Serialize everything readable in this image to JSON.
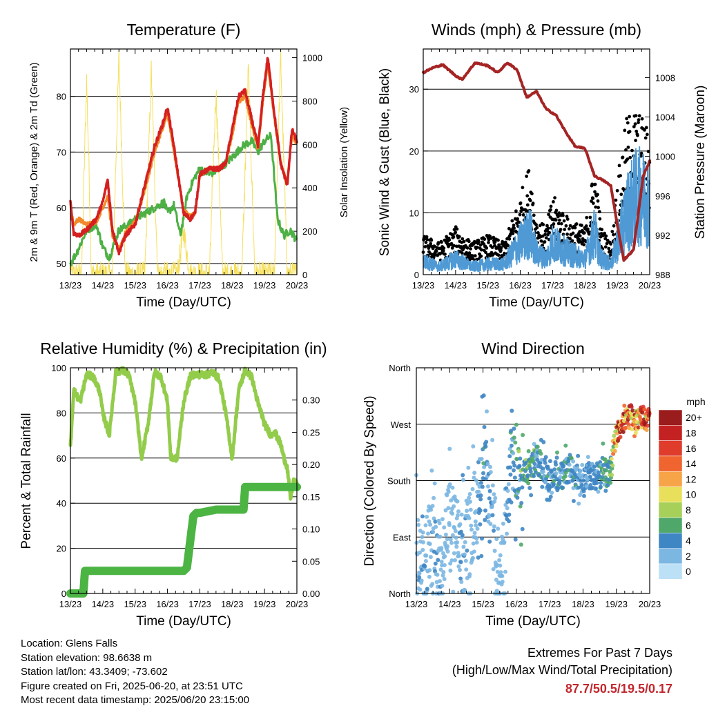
{
  "chart_data": [
    {
      "type": "line",
      "title": "Temperature (F)",
      "xlabel": "Time (Day/UTC)",
      "ylabel": "2m & 9m T (Red, Orange) & 2m Td (Green)",
      "ylabel_right": "Solar Insolation (Yellow)",
      "x_ticks": [
        "13/23",
        "14/23",
        "15/23",
        "16/23",
        "17/23",
        "18/23",
        "19/23",
        "20/23"
      ],
      "ylim": [
        48,
        88.5
      ],
      "y_ticks": [
        50,
        60,
        70,
        80
      ],
      "ylim_right": [
        0,
        1040
      ],
      "y_ticks_right": [
        0,
        200,
        400,
        600,
        800,
        1000
      ],
      "grid_y": true,
      "series": [
        {
          "color": "#d42020",
          "x": [
            0,
            0.1,
            0.25,
            0.5,
            0.8,
            1.0,
            1.15,
            1.3,
            1.5,
            1.7,
            2.0,
            2.3,
            2.6,
            2.85,
            3.0,
            3.2,
            3.5,
            3.7,
            3.85,
            4.0,
            4.3,
            4.6,
            4.8,
            5.0,
            5.2,
            5.4,
            5.6,
            5.8,
            5.95,
            6.1,
            6.3,
            6.5,
            6.7,
            6.85,
            7.0
          ],
          "values": [
            61,
            55.5,
            55,
            56,
            58,
            61,
            65,
            56,
            52,
            55,
            57,
            64,
            71,
            75,
            78,
            71,
            59,
            58,
            59,
            66,
            67,
            67,
            68,
            74,
            80,
            81,
            76,
            71,
            80,
            87,
            77,
            68,
            64,
            74,
            72
          ]
        },
        {
          "color": "#f08a2a",
          "x": [
            0,
            0.1,
            0.25,
            0.5,
            0.8,
            1.0,
            1.15,
            1.3,
            1.5,
            1.7,
            2.0,
            2.3,
            2.6,
            2.85,
            3.0,
            3.2,
            3.5,
            3.7,
            3.85,
            4.0,
            4.3,
            4.6,
            4.8,
            5.0,
            5.2,
            5.4,
            5.6,
            5.8,
            5.95,
            6.1,
            6.3,
            6.5,
            6.7,
            6.85,
            7.0
          ],
          "values": [
            60.5,
            57,
            58,
            57,
            57.5,
            60,
            62,
            55,
            52.5,
            55.5,
            57.5,
            63,
            70,
            74,
            77,
            70,
            59.5,
            58.5,
            59,
            66,
            67,
            67,
            68,
            73,
            79,
            80,
            75,
            70.5,
            79,
            86,
            76,
            68,
            64.5,
            73,
            71.5
          ]
        },
        {
          "color": "#4db045",
          "x": [
            0,
            0.2,
            0.5,
            0.8,
            1.0,
            1.2,
            1.5,
            1.8,
            2.0,
            2.3,
            2.6,
            2.9,
            3.0,
            3.2,
            3.4,
            3.6,
            3.8,
            4.0,
            4.3,
            4.6,
            4.8,
            5.0,
            5.3,
            5.6,
            5.8,
            6.0,
            6.2,
            6.4,
            6.6,
            6.8,
            7.0
          ],
          "values": [
            50,
            52,
            56,
            57,
            53,
            51,
            56,
            57,
            58,
            59,
            60,
            61,
            59,
            60.5,
            55,
            62,
            65,
            67,
            66,
            67,
            68,
            69,
            71,
            72,
            70,
            72,
            73,
            58,
            55,
            56,
            54
          ]
        },
        {
          "color": "#f5df5a",
          "x": [
            0,
            0.05,
            0.35,
            0.42,
            0.5,
            0.58,
            0.65,
            1.0,
            1.3,
            1.4,
            1.5,
            1.6,
            1.7,
            2.0,
            2.3,
            2.4,
            2.5,
            2.6,
            2.7,
            3.0,
            3.3,
            3.4,
            3.5,
            3.6,
            3.7,
            4.0,
            4.3,
            4.4,
            4.5,
            4.6,
            4.7,
            5.0,
            5.3,
            5.4,
            5.5,
            5.6,
            5.7,
            6.0,
            6.3,
            6.4,
            6.5,
            6.6,
            6.7,
            7.0
          ],
          "values": [
            0,
            0,
            0,
            450,
            900,
            450,
            0,
            0,
            0,
            500,
            1000,
            500,
            0,
            0,
            0,
            450,
            950,
            450,
            0,
            0,
            0,
            100,
            200,
            100,
            0,
            0,
            0,
            450,
            850,
            450,
            0,
            0,
            0,
            480,
            950,
            480,
            0,
            0,
            0,
            500,
            1000,
            500,
            0,
            0
          ]
        }
      ]
    },
    {
      "type": "scatter",
      "title": "Winds (mph) & Pressure (mb)",
      "xlabel": "Time (Day/UTC)",
      "ylabel": "Sonic Wind & Gust (Blue, Black)",
      "ylabel_right": "Station Pressure (Maroon)",
      "x_ticks": [
        "13/23",
        "14/23",
        "15/23",
        "16/23",
        "17/23",
        "18/23",
        "19/23",
        "20/23"
      ],
      "ylim": [
        0,
        36.5
      ],
      "y_ticks": [
        0,
        10,
        20,
        30
      ],
      "ylim_right": [
        988,
        1010.9
      ],
      "y_ticks_right": [
        988,
        992,
        996,
        1000,
        1004,
        1008
      ],
      "grid_y": true,
      "series": [
        {
          "color": "#000000",
          "x": [
            0,
            0.5,
            1.0,
            1.5,
            2.0,
            2.5,
            3.0,
            3.3,
            3.5,
            3.8,
            4.0,
            4.5,
            5.0,
            5.3,
            5.5,
            5.8,
            6.0,
            6.3,
            6.6,
            7.0
          ],
          "values": [
            5,
            4,
            6,
            4,
            5,
            4,
            10,
            14,
            7,
            6,
            10,
            7,
            6,
            14,
            6,
            4,
            12,
            20,
            21,
            18
          ]
        },
        {
          "color": "#4f9ad5",
          "x": [
            0,
            0.5,
            1.0,
            1.5,
            2.0,
            2.5,
            3.0,
            3.3,
            3.5,
            3.8,
            4.0,
            4.5,
            5.0,
            5.3,
            5.5,
            5.8,
            6.0,
            6.3,
            6.6,
            7.0
          ],
          "values": [
            2.5,
            1.5,
            3,
            1.5,
            2,
            2,
            6,
            8,
            4,
            3,
            6,
            4,
            3,
            8,
            3,
            2,
            6,
            12,
            15,
            14
          ]
        },
        {
          "color": "#a52424",
          "x": [
            0,
            0.3,
            0.6,
            1.0,
            1.2,
            1.6,
            2.0,
            2.3,
            2.6,
            2.9,
            3.2,
            3.5,
            3.8,
            4.1,
            4.4,
            4.7,
            5.0,
            5.3,
            5.6,
            5.8,
            6.0,
            6.2,
            6.5,
            6.8,
            7.0
          ],
          "values": [
            1008.5,
            1009,
            1009.3,
            1008.2,
            1007.8,
            1009.5,
            1009.2,
            1008.5,
            1009.5,
            1008.8,
            1006,
            1006.6,
            1004.8,
            1004.2,
            1002.5,
            1001,
            1000.8,
            998,
            997.5,
            997,
            993,
            989.5,
            990.5,
            998,
            999.5
          ]
        }
      ]
    },
    {
      "type": "line",
      "title": "Relative Humidity (%) & Precipitation (in)",
      "xlabel": "Time (Day/UTC)",
      "ylabel": "Percent & Total Rainfall",
      "x_ticks": [
        "13/23",
        "14/23",
        "15/23",
        "16/23",
        "17/23",
        "18/23",
        "19/23",
        "20/23"
      ],
      "ylim": [
        0,
        100
      ],
      "y_ticks": [
        0,
        20,
        40,
        60,
        80,
        100
      ],
      "ylim_right": [
        0,
        0.35
      ],
      "y_ticks_right": [
        "0.00",
        "0.05",
        "0.10",
        "0.15",
        "0.20",
        "0.25",
        "0.30"
      ],
      "grid_y": true,
      "series": [
        {
          "color": "#92cc4a",
          "axis": "left",
          "x": [
            0,
            0.1,
            0.3,
            0.5,
            0.7,
            0.9,
            1.0,
            1.2,
            1.4,
            1.6,
            1.8,
            2.0,
            2.2,
            2.4,
            2.6,
            2.8,
            3.0,
            3.1,
            3.3,
            3.5,
            3.7,
            3.8,
            4.0,
            4.2,
            4.4,
            4.6,
            4.8,
            5.0,
            5.2,
            5.4,
            5.6,
            5.8,
            5.9,
            6.0,
            6.2,
            6.3,
            6.5,
            6.6,
            6.7,
            6.8,
            6.9,
            7.0
          ],
          "values": [
            65,
            90,
            85,
            97,
            96,
            90,
            80,
            70,
            98,
            99,
            97,
            85,
            60,
            75,
            98,
            96,
            85,
            60,
            60,
            85,
            96,
            97,
            97,
            97,
            98,
            95,
            80,
            60,
            90,
            99,
            96,
            84,
            80,
            75,
            70,
            72,
            66,
            60,
            56,
            42,
            50,
            48
          ]
        },
        {
          "color": "#4bb443",
          "axis": "right",
          "x": [
            0,
            0.4,
            0.45,
            0.6,
            1.0,
            2.0,
            3.0,
            3.5,
            3.6,
            3.75,
            3.8,
            3.9,
            4.0,
            4.5,
            5.0,
            5.05,
            5.35,
            5.4,
            6.0,
            6.5,
            7.0
          ],
          "values": [
            0,
            0,
            0.035,
            0.035,
            0.035,
            0.035,
            0.035,
            0.035,
            0.04,
            0.1,
            0.12,
            0.125,
            0.125,
            0.13,
            0.13,
            0.13,
            0.13,
            0.165,
            0.165,
            0.165,
            0.165
          ]
        }
      ]
    },
    {
      "type": "scatter",
      "title": "Wind Direction",
      "xlabel": "Time (Day/UTC)",
      "ylabel": "Direction (Colored By Speed)",
      "x_ticks": [
        "13/23",
        "14/23",
        "15/23",
        "16/23",
        "17/23",
        "18/23",
        "19/23",
        "20/23"
      ],
      "y_ticks": [
        "North",
        "East",
        "South",
        "West",
        "North"
      ],
      "ylim": [
        0,
        360
      ],
      "grid_y": true,
      "colorbar": {
        "title": "mph",
        "labels": [
          "20+",
          "18",
          "16",
          "14",
          "12",
          "10",
          "8",
          "6",
          "4",
          "2",
          "0"
        ],
        "colors": [
          "#9b1c1c",
          "#c42222",
          "#e03c2c",
          "#f0652f",
          "#f7a449",
          "#e8e05a",
          "#a7d05a",
          "#4fa86a",
          "#3f86c4",
          "#7cb7e2",
          "#bce0f5"
        ]
      },
      "series": [
        {
          "x": [
            0,
            0.2,
            0.4,
            0.6,
            0.8,
            1.0,
            1.2,
            1.4,
            1.6,
            1.8,
            2.0,
            2.2,
            2.4,
            2.6,
            2.8,
            3.0,
            3.2,
            3.4,
            3.6,
            3.8,
            4.0,
            4.2,
            4.4,
            4.6,
            4.8,
            5.0,
            5.2,
            5.4,
            5.6,
            5.8,
            6.0,
            6.2,
            6.4,
            6.6,
            6.8,
            7.0
          ],
          "values": [
            60,
            40,
            80,
            50,
            70,
            120,
            90,
            60,
            100,
            140,
            200,
            170,
            60,
            30,
            190,
            210,
            200,
            195,
            215,
            200,
            180,
            185,
            190,
            200,
            185,
            175,
            190,
            180,
            195,
            190,
            255,
            270,
            290,
            275,
            285,
            280
          ],
          "speeds": [
            2,
            3,
            2,
            3,
            2,
            2,
            2,
            3,
            2,
            2,
            4,
            3,
            2,
            2,
            4,
            5,
            6,
            6,
            5,
            4,
            4,
            4,
            5,
            4,
            4,
            3,
            4,
            4,
            5,
            6,
            14,
            15,
            16,
            13,
            15,
            14
          ]
        }
      ]
    }
  ],
  "station_info": {
    "location": "Location: Glens Falls",
    "elevation": "Station elevation: 98.6638 m",
    "latlon": "Station lat/lon: 43.3409; -73.602",
    "created": "Figure created on Fri, 2025-06-20, at 23:51 UTC",
    "timestamp": "Most recent data timestamp: 2025/06/20 23:15:00"
  },
  "extremes": {
    "title": "Extremes For Past 7 Days",
    "subtitle": "(High/Low/Max Wind/Total Precipitation)",
    "values": "87.7/50.5/19.5/0.17",
    "color": "#c1272d"
  }
}
